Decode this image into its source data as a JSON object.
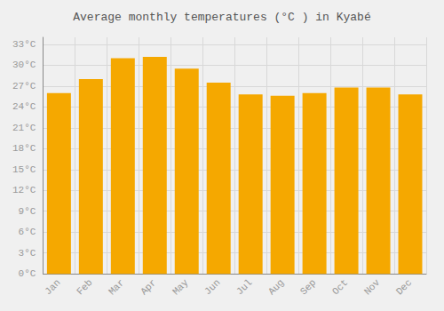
{
  "chart_data": {
    "type": "bar",
    "title": "Average monthly temperatures (°C ) in Kyabé",
    "categories": [
      "Jan",
      "Feb",
      "Mar",
      "Apr",
      "May",
      "Jun",
      "Jul",
      "Aug",
      "Sep",
      "Oct",
      "Nov",
      "Dec"
    ],
    "values": [
      26.0,
      28.0,
      31.0,
      31.2,
      29.5,
      27.5,
      25.8,
      25.6,
      26.0,
      26.8,
      26.8,
      25.8
    ],
    "color": "#F5A800",
    "ylim": [
      0,
      34
    ],
    "yticks": [
      {
        "value": 0,
        "label": "0°C"
      },
      {
        "value": 3,
        "label": "3°C"
      },
      {
        "value": 6,
        "label": "6°C"
      },
      {
        "value": 9,
        "label": "9°C"
      },
      {
        "value": 12,
        "label": "12°C"
      },
      {
        "value": 15,
        "label": "15°C"
      },
      {
        "value": 18,
        "label": "18°C"
      },
      {
        "value": 21,
        "label": "21°C"
      },
      {
        "value": 24,
        "label": "24°C"
      },
      {
        "value": 27,
        "label": "27°C"
      },
      {
        "value": 30,
        "label": "30°C"
      },
      {
        "value": 33,
        "label": "33°C"
      }
    ],
    "grid": true
  }
}
